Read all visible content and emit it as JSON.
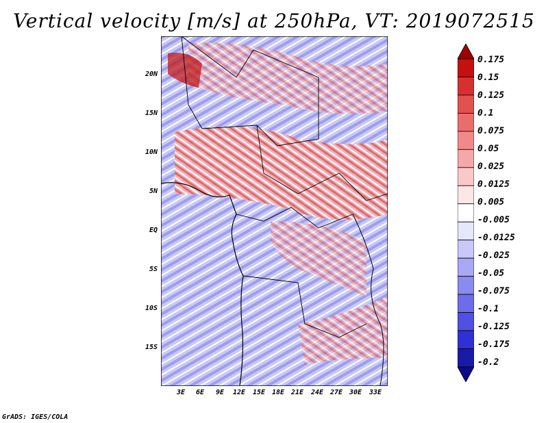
{
  "title": "Vertical velocity [m/s] at 250hPa, VT: 2019072515",
  "map": {
    "lat_labels": [
      "20N",
      "15N",
      "10N",
      "5N",
      "EQ",
      "5S",
      "10S",
      "15S"
    ],
    "lon_labels": [
      "3E",
      "6E",
      "9E",
      "12E",
      "15E",
      "18E",
      "21E",
      "24E",
      "27E",
      "30E",
      "33E"
    ],
    "colors": {
      "strong_up": "#b40000",
      "up": "#e07070",
      "light_up": "#f8c8c8",
      "zero": "#ffffff",
      "light_down": "#c8c8f8",
      "down": "#7070e0",
      "strong_down": "#2020a0"
    }
  },
  "colorbar": {
    "labels": [
      "0.175",
      "0.15",
      "0.125",
      "0.1",
      "0.075",
      "0.05",
      "0.025",
      "0.0125",
      "0.005",
      "-0.005",
      "-0.0125",
      "-0.025",
      "-0.05",
      "-0.075",
      "-0.1",
      "-0.125",
      "-0.175",
      "-0.2"
    ],
    "colors": [
      "#a00000",
      "#c41010",
      "#d83030",
      "#e35050",
      "#ea6d6d",
      "#f08a8a",
      "#f5a8a8",
      "#fac8c8",
      "#fde6e6",
      "#ffffff",
      "#e6e6fd",
      "#c8c8fa",
      "#a8a8f5",
      "#8a8af0",
      "#6d6dea",
      "#5050e3",
      "#3030d8",
      "#1a1aa8",
      "#0a0a8a"
    ]
  },
  "credit": "GrADS: IGES/COLA"
}
